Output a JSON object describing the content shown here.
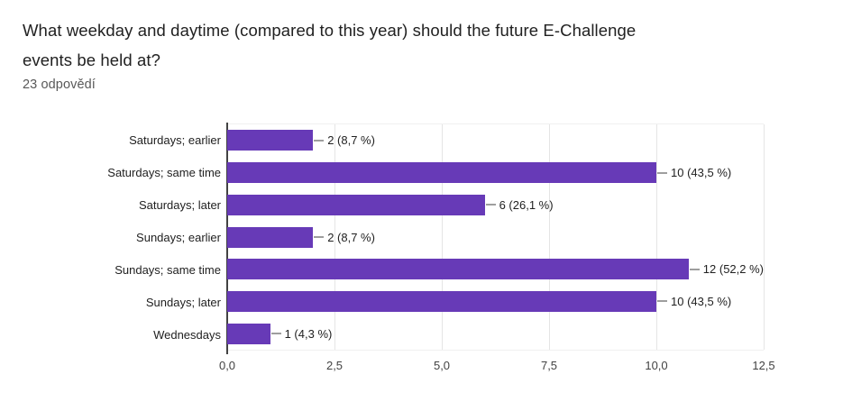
{
  "header": {
    "title": "What weekday and daytime (compared to this year) should the future E-Challenge events be held at?",
    "responses_label": "23 odpovědí"
  },
  "chart_data": {
    "type": "bar",
    "orientation": "horizontal",
    "title": "What weekday and daytime (compared to this year) should the future E-Challenge events be held at?",
    "subtitle": "23 odpovědí",
    "total_responses": 23,
    "bar_color": "#673AB7",
    "xlim": [
      0,
      12.5
    ],
    "grid": true,
    "x_ticks": [
      "0,0",
      "2,5",
      "5,0",
      "7,5",
      "10,0",
      "12,5"
    ],
    "x_tick_values": [
      0,
      2.5,
      5,
      7.5,
      10,
      12.5
    ],
    "categories": [
      "Saturdays; earlier",
      "Saturdays; same time",
      "Saturdays; later",
      "Sundays; earlier",
      "Sundays; same time",
      "Sundays; later",
      "Wednesdays"
    ],
    "values": [
      2,
      10,
      6,
      2,
      12,
      10,
      1
    ],
    "percentages": [
      8.7,
      43.5,
      26.1,
      8.7,
      52.2,
      43.5,
      4.3
    ],
    "bars": [
      {
        "category": "Saturdays; earlier",
        "value": 2,
        "label": "2 (8,7 %)"
      },
      {
        "category": "Saturdays; same time",
        "value": 10,
        "label": "10 (43,5 %)"
      },
      {
        "category": "Saturdays; later",
        "value": 6,
        "label": "6 (26,1 %)"
      },
      {
        "category": "Sundays; earlier",
        "value": 2,
        "label": "2 (8,7 %)"
      },
      {
        "category": "Sundays; same time",
        "value": 12,
        "label": "12 (52,2 %)"
      },
      {
        "category": "Sundays; later",
        "value": 10,
        "label": "10 (43,5 %)"
      },
      {
        "category": "Wednesdays",
        "value": 1,
        "label": "1 (4,3 %)"
      }
    ]
  }
}
